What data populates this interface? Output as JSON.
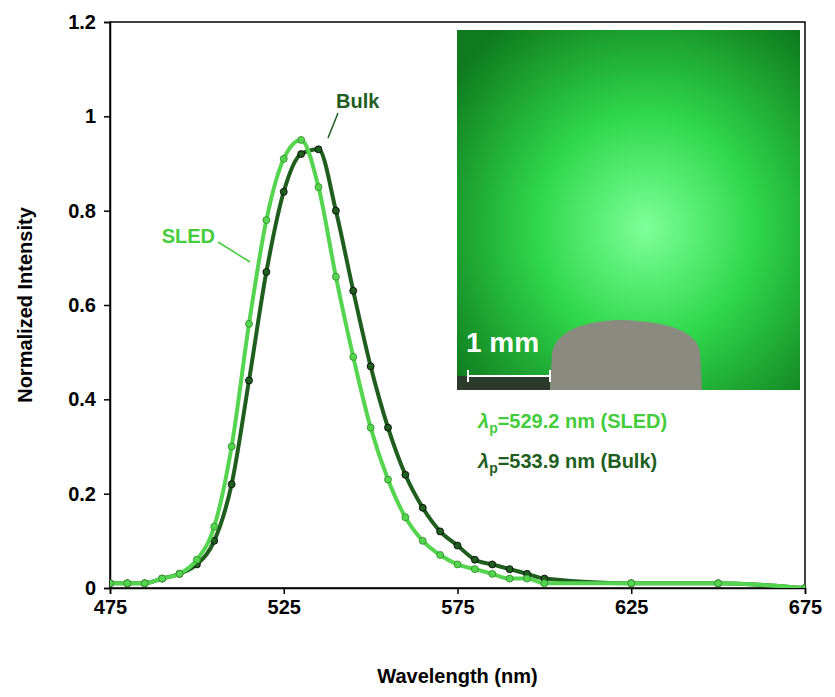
{
  "chart_data": {
    "type": "line",
    "x_label": "Wavelength (nm)",
    "y_label": "Normalized Intensity",
    "x": [
      475,
      480,
      485,
      490,
      495,
      500,
      505,
      510,
      515,
      520,
      525,
      530,
      535,
      540,
      545,
      550,
      555,
      560,
      565,
      570,
      575,
      580,
      585,
      590,
      595,
      600,
      625,
      650,
      675
    ],
    "series": [
      {
        "name": "SLED",
        "color": "#55d44f",
        "marker": "circle",
        "line_style": "solid",
        "values": [
          0.01,
          0.01,
          0.01,
          0.02,
          0.03,
          0.06,
          0.13,
          0.3,
          0.56,
          0.78,
          0.91,
          0.95,
          0.85,
          0.66,
          0.49,
          0.34,
          0.23,
          0.15,
          0.1,
          0.07,
          0.05,
          0.04,
          0.03,
          0.02,
          0.02,
          0.01,
          0.01,
          0.01,
          0.0
        ]
      },
      {
        "name": "Bulk",
        "color": "#1f5e1f",
        "marker": "circle",
        "line_style": "solid",
        "values": [
          0.01,
          0.01,
          0.01,
          0.02,
          0.03,
          0.05,
          0.1,
          0.22,
          0.44,
          0.67,
          0.84,
          0.92,
          0.93,
          0.8,
          0.63,
          0.47,
          0.34,
          0.24,
          0.17,
          0.12,
          0.09,
          0.06,
          0.05,
          0.04,
          0.03,
          0.02,
          0.01,
          0.01,
          0.0
        ]
      }
    ],
    "annotations": [
      "λp=529.2 nm (SLED)",
      "λp=533.9 nm (Bulk)",
      "1 mm"
    ],
    "xlim": [
      475,
      675
    ],
    "xticks": [
      475,
      525,
      575,
      625,
      675
    ],
    "ylim": [
      0,
      1.2
    ],
    "yticks": [
      0,
      0.2,
      0.4,
      0.6,
      0.8,
      1,
      1.2
    ],
    "grid": false
  }
}
